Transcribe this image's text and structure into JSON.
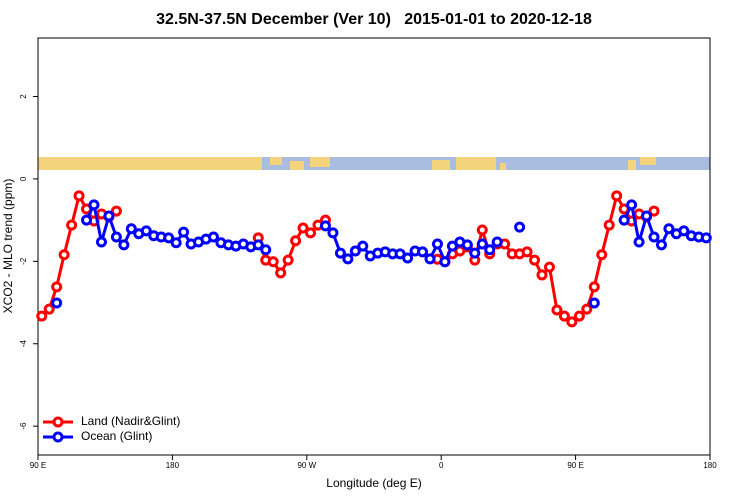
{
  "chart_data": {
    "type": "line",
    "title": "32.5N-37.5N December (Ver 10)   2015-01-01 to 2020-12-18",
    "x_label": "Longitude (deg E)",
    "y_label": "XCO2 - MLO trend (ppm)",
    "x": [
      92.5,
      97.5,
      102.5,
      107.5,
      112.5,
      117.5,
      122.5,
      127.5,
      132.5,
      137.5,
      142.5,
      147.5,
      152.5,
      157.5,
      162.5,
      167.5,
      172.5,
      177.5,
      182.5,
      187.5,
      192.5,
      197.5,
      202.5,
      207.5,
      212.5,
      217.5,
      222.5,
      227.5,
      232.5,
      237.5,
      242.5,
      247.5,
      252.5,
      257.5,
      262.5,
      267.5,
      272.5,
      277.5,
      282.5,
      287.5,
      292.5,
      297.5,
      302.5,
      307.5,
      312.5,
      317.5,
      322.5,
      327.5,
      332.5,
      337.5,
      342.5,
      347.5,
      352.5,
      357.5,
      362.5,
      367.5,
      372.5,
      377.5,
      382.5,
      387.5,
      392.5,
      397.5,
      402.5,
      407.5,
      412.5,
      417.5,
      422.5,
      427.5,
      432.5,
      437.5,
      442.5,
      447.5,
      452.5,
      457.5,
      462.5,
      467.5,
      472.5,
      477.5,
      482.5,
      487.5,
      492.5,
      497.5,
      502.5,
      507.5,
      512.5,
      517.5,
      522.5,
      527.5,
      532.5,
      537.5
    ],
    "series": [
      {
        "name": "Land (Nadir&Glint)",
        "color": "#ff0000",
        "values": [
          -3.33,
          -3.16,
          -2.62,
          -1.84,
          -1.12,
          -0.41,
          -0.73,
          -1.02,
          -0.85,
          -0.92,
          -0.78,
          null,
          null,
          null,
          null,
          null,
          null,
          null,
          null,
          null,
          null,
          null,
          null,
          null,
          null,
          null,
          null,
          null,
          null,
          -1.43,
          -1.97,
          -2.01,
          -2.28,
          -1.97,
          -1.5,
          -1.19,
          -1.31,
          -1.12,
          -1.0,
          null,
          null,
          null,
          null,
          null,
          null,
          null,
          null,
          null,
          null,
          null,
          null,
          null,
          null,
          -1.95,
          -2.01,
          -1.82,
          -1.75,
          -1.65,
          -1.97,
          -1.24,
          -1.82,
          -1.58,
          -1.58,
          -1.82,
          -1.82,
          -1.77,
          -1.97,
          -2.33,
          -2.14,
          -3.18,
          -3.33,
          -3.47,
          -3.33,
          -3.16,
          -2.62,
          -1.84,
          -1.12,
          -0.41,
          -0.73,
          -1.02,
          -0.85,
          -0.92,
          -0.78,
          null,
          null,
          null,
          null,
          null,
          null,
          null
        ]
      },
      {
        "name": "Ocean (Glint)",
        "color": "#0000ff",
        "values": [
          null,
          null,
          -3.01,
          null,
          null,
          null,
          -1.0,
          -0.63,
          -1.53,
          -0.9,
          -1.41,
          -1.6,
          -1.21,
          -1.33,
          -1.26,
          -1.38,
          -1.41,
          -1.43,
          -1.55,
          -1.29,
          -1.58,
          -1.53,
          -1.46,
          -1.41,
          -1.55,
          -1.6,
          -1.63,
          -1.58,
          -1.65,
          -1.6,
          -1.72,
          null,
          null,
          null,
          null,
          null,
          null,
          null,
          -1.14,
          -1.31,
          -1.8,
          -1.94,
          -1.75,
          -1.63,
          -1.87,
          -1.8,
          -1.77,
          -1.82,
          -1.82,
          -1.92,
          -1.75,
          -1.77,
          -1.94,
          -1.58,
          -2.01,
          -1.63,
          -1.53,
          -1.6,
          -1.8,
          -1.58,
          -1.72,
          -1.53,
          null,
          null,
          -1.17,
          null,
          null,
          null,
          null,
          null,
          null,
          null,
          null,
          null,
          -3.01,
          null,
          null,
          null,
          -1.0,
          -0.63,
          -1.53,
          -0.9,
          -1.41,
          -1.6,
          -1.21,
          -1.33,
          -1.26,
          -1.38,
          -1.41,
          -1.43
        ]
      }
    ],
    "xlim": [
      90,
      540
    ],
    "xticks": [
      {
        "value": 90,
        "label": "90 E"
      },
      180,
      {
        "value": 270,
        "label": "90 W"
      },
      {
        "value": 360,
        "label": "0"
      },
      {
        "value": 450,
        "label": "90 E"
      },
      {
        "value": 540,
        "label": "180"
      }
    ],
    "ylim": [
      -6.7,
      3.42
    ],
    "yticks": [
      2,
      0,
      -2,
      -4,
      -6
    ],
    "legend": "bottom-left"
  }
}
